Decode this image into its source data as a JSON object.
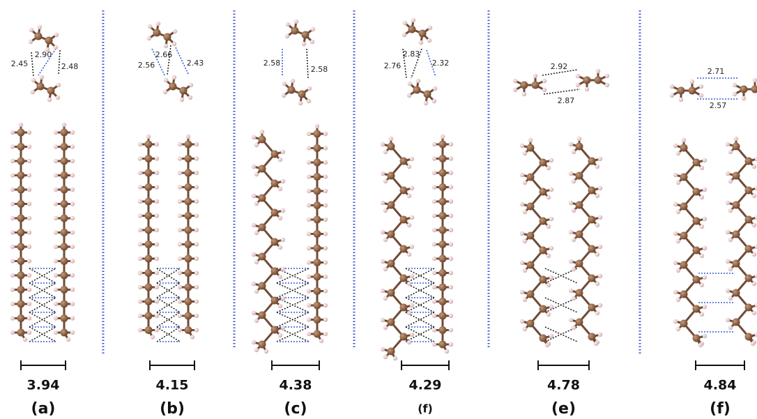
{
  "panels": [
    {
      "contacts": [
        "2.45",
        "2.90",
        "2.48"
      ],
      "distance": "3.94",
      "label": "(a)"
    },
    {
      "contacts": [
        "2.56",
        "2.66",
        "2.43"
      ],
      "distance": "4.15",
      "label": "(b)"
    },
    {
      "contacts": [
        "2.58",
        "2.58"
      ],
      "distance": "4.38",
      "label": "(c)"
    },
    {
      "contacts": [
        "2.76",
        "2.83",
        "2.32"
      ],
      "distance": "4.29",
      "label": "(f)"
    },
    {
      "contacts": [
        "2.92",
        "2.87"
      ],
      "distance": "4.78",
      "label": "(e)"
    },
    {
      "contacts": [
        "2.71",
        "2.57"
      ],
      "distance": "4.84",
      "label": "(f)"
    }
  ]
}
